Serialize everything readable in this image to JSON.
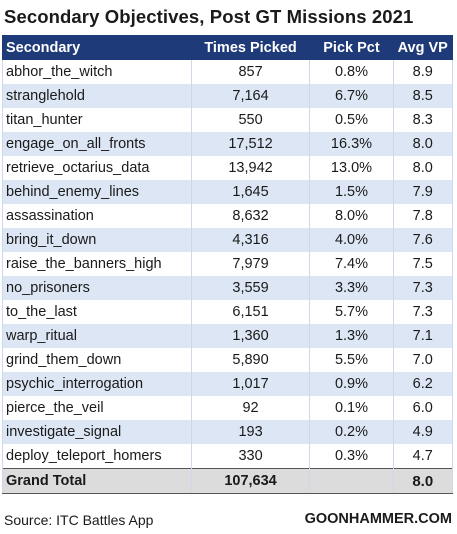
{
  "chart_data": {
    "type": "table",
    "title": "Secondary Objectives, Post GT Missions 2021",
    "columns": [
      "Secondary",
      "Times Picked",
      "Pick Pct",
      "Avg VP"
    ],
    "rows": [
      {
        "secondary": "abhor_the_witch",
        "times_picked": "857",
        "pick_pct": "0.8%",
        "avg_vp": "8.9"
      },
      {
        "secondary": "stranglehold",
        "times_picked": "7,164",
        "pick_pct": "6.7%",
        "avg_vp": "8.5"
      },
      {
        "secondary": "titan_hunter",
        "times_picked": "550",
        "pick_pct": "0.5%",
        "avg_vp": "8.3"
      },
      {
        "secondary": "engage_on_all_fronts",
        "times_picked": "17,512",
        "pick_pct": "16.3%",
        "avg_vp": "8.0"
      },
      {
        "secondary": "retrieve_octarius_data",
        "times_picked": "13,942",
        "pick_pct": "13.0%",
        "avg_vp": "8.0"
      },
      {
        "secondary": "behind_enemy_lines",
        "times_picked": "1,645",
        "pick_pct": "1.5%",
        "avg_vp": "7.9"
      },
      {
        "secondary": "assassination",
        "times_picked": "8,632",
        "pick_pct": "8.0%",
        "avg_vp": "7.8"
      },
      {
        "secondary": "bring_it_down",
        "times_picked": "4,316",
        "pick_pct": "4.0%",
        "avg_vp": "7.6"
      },
      {
        "secondary": "raise_the_banners_high",
        "times_picked": "7,979",
        "pick_pct": "7.4%",
        "avg_vp": "7.5"
      },
      {
        "secondary": "no_prisoners",
        "times_picked": "3,559",
        "pick_pct": "3.3%",
        "avg_vp": "7.3"
      },
      {
        "secondary": "to_the_last",
        "times_picked": "6,151",
        "pick_pct": "5.7%",
        "avg_vp": "7.3"
      },
      {
        "secondary": "warp_ritual",
        "times_picked": "1,360",
        "pick_pct": "1.3%",
        "avg_vp": "7.1"
      },
      {
        "secondary": "grind_them_down",
        "times_picked": "5,890",
        "pick_pct": "5.5%",
        "avg_vp": "7.0"
      },
      {
        "secondary": "psychic_interrogation",
        "times_picked": "1,017",
        "pick_pct": "0.9%",
        "avg_vp": "6.2"
      },
      {
        "secondary": "pierce_the_veil",
        "times_picked": "92",
        "pick_pct": "0.1%",
        "avg_vp": "6.0"
      },
      {
        "secondary": "investigate_signal",
        "times_picked": "193",
        "pick_pct": "0.2%",
        "avg_vp": "4.9"
      },
      {
        "secondary": "deploy_teleport_homers",
        "times_picked": "330",
        "pick_pct": "0.3%",
        "avg_vp": "4.7"
      }
    ],
    "total": {
      "label": "Grand Total",
      "times_picked": "107,634",
      "pick_pct": "",
      "avg_vp": "8.0"
    }
  },
  "footer": {
    "source": "Source: ITC Battles App",
    "brand": "GOONHAMMER.COM"
  },
  "colors": {
    "header_bg": "#1f3a78",
    "band_bg": "#dce6f4",
    "total_bg": "#dcdcdc"
  }
}
